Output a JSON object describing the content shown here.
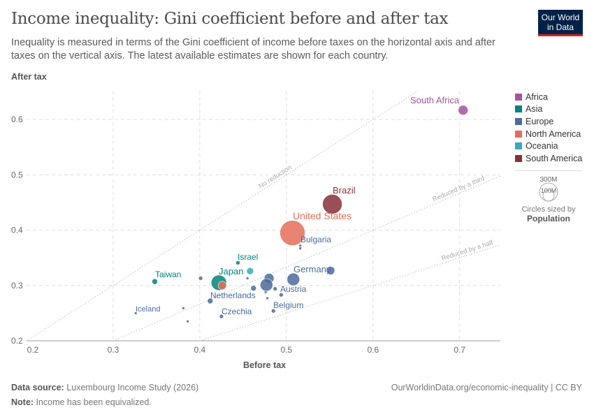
{
  "title": "Income inequality: Gini coefficient before and after tax",
  "subtitle": "Inequality is measured in terms of the Gini coefficient of income before taxes on the horizontal axis and after taxes on the vertical axis. The latest available estimates are shown for each country.",
  "logo": "Our World in Data",
  "size_legend": {
    "big": "300M",
    "small": "100M",
    "caption": "Circles sized by",
    "variable": "Population"
  },
  "footer": {
    "source_label": "Data source:",
    "source": "Luxembourg Income Study (2026)",
    "note_label": "Note:",
    "note": "Income has been equivalized.",
    "url": "OurWorldinData.org/economic-inequality | CC BY"
  },
  "colors": {
    "Africa": "#a2559c",
    "Asia": "#00847e",
    "Europe": "#4c6a9c",
    "North America": "#e56e5a",
    "Oceania": "#38aaba",
    "South America": "#883039"
  },
  "chart_data": {
    "type": "scatter",
    "xlabel": "Before tax",
    "ylabel": "After tax",
    "xlim": [
      0.2,
      0.747
    ],
    "ylim": [
      0.2,
      0.652
    ],
    "xticks": [
      "0.2",
      "0.3",
      "0.4",
      "0.5",
      "0.6",
      "0.7"
    ],
    "yticks": [
      "0.2",
      "0.3",
      "0.4",
      "0.5",
      "0.6"
    ],
    "grid": true,
    "legend": "right",
    "legend_entries": [
      "Africa",
      "Asia",
      "Europe",
      "North America",
      "Oceania",
      "South America"
    ],
    "reference_lines": [
      {
        "label": "No reduction",
        "ratio": 1
      },
      {
        "label": "Reduced by a third",
        "ratio": 0.6667
      },
      {
        "label": "Reduced by a half",
        "ratio": 0.5
      }
    ],
    "points": [
      {
        "label": "South Africa",
        "region": "Africa",
        "x": 0.704,
        "y": 0.617,
        "r": 7
      },
      {
        "label": "Brazil",
        "region": "South America",
        "x": 0.553,
        "y": 0.447,
        "r": 14
      },
      {
        "label": "United States",
        "region": "North America",
        "x": 0.507,
        "y": 0.395,
        "r": 18
      },
      {
        "label": "Bulgaria",
        "region": "Europe",
        "x": 0.516,
        "y": 0.372,
        "r": 2
      },
      {
        "label": "",
        "region": "Europe",
        "x": 0.516,
        "y": 0.367,
        "r": 2
      },
      {
        "label": "Israel",
        "region": "Asia",
        "x": 0.444,
        "y": 0.341,
        "r": 3
      },
      {
        "label": "Japan",
        "region": "Asia",
        "x": 0.422,
        "y": 0.305,
        "r": 11
      },
      {
        "label": "",
        "region": "Oceania",
        "x": 0.458,
        "y": 0.326,
        "r": 5
      },
      {
        "label": "",
        "region": "North America",
        "x": 0.426,
        "y": 0.3,
        "r": 6
      },
      {
        "label": "Taiwan",
        "region": "Asia",
        "x": 0.348,
        "y": 0.307,
        "r": 4
      },
      {
        "label": "Germany",
        "region": "Europe",
        "x": 0.508,
        "y": 0.311,
        "r": 9
      },
      {
        "label": "",
        "region": "Europe",
        "x": 0.551,
        "y": 0.327,
        "r": 6
      },
      {
        "label": "",
        "region": "Europe",
        "x": 0.48,
        "y": 0.313,
        "r": 7
      },
      {
        "label": "",
        "region": "Europe",
        "x": 0.477,
        "y": 0.301,
        "r": 9
      },
      {
        "label": "",
        "region": "Europe",
        "x": 0.487,
        "y": 0.294,
        "r": 3
      },
      {
        "label": "Austria",
        "region": "Europe",
        "x": 0.494,
        "y": 0.283,
        "r": 3
      },
      {
        "label": "",
        "region": "Europe",
        "x": 0.476,
        "y": 0.288,
        "r": 2
      },
      {
        "label": "",
        "region": "Europe",
        "x": 0.478,
        "y": 0.277,
        "r": 2
      },
      {
        "label": "",
        "region": "Europe",
        "x": 0.462,
        "y": 0.295,
        "r": 4
      },
      {
        "label": "",
        "region": "Europe",
        "x": 0.455,
        "y": 0.313,
        "r": 2
      },
      {
        "label": "",
        "region": "Europe",
        "x": 0.401,
        "y": 0.313,
        "r": 3
      },
      {
        "label": "Netherlands",
        "region": "Europe",
        "x": 0.412,
        "y": 0.272,
        "r": 4
      },
      {
        "label": "Czechia",
        "region": "Europe",
        "x": 0.425,
        "y": 0.244,
        "r": 3
      },
      {
        "label": "Belgium",
        "region": "Europe",
        "x": 0.485,
        "y": 0.254,
        "r": 3
      },
      {
        "label": "Iceland",
        "region": "Europe",
        "x": 0.326,
        "y": 0.25,
        "r": 2
      },
      {
        "label": "",
        "region": "Europe",
        "x": 0.381,
        "y": 0.259,
        "r": 2
      },
      {
        "label": "",
        "region": "Europe",
        "x": 0.386,
        "y": 0.235,
        "r": 2
      }
    ]
  }
}
